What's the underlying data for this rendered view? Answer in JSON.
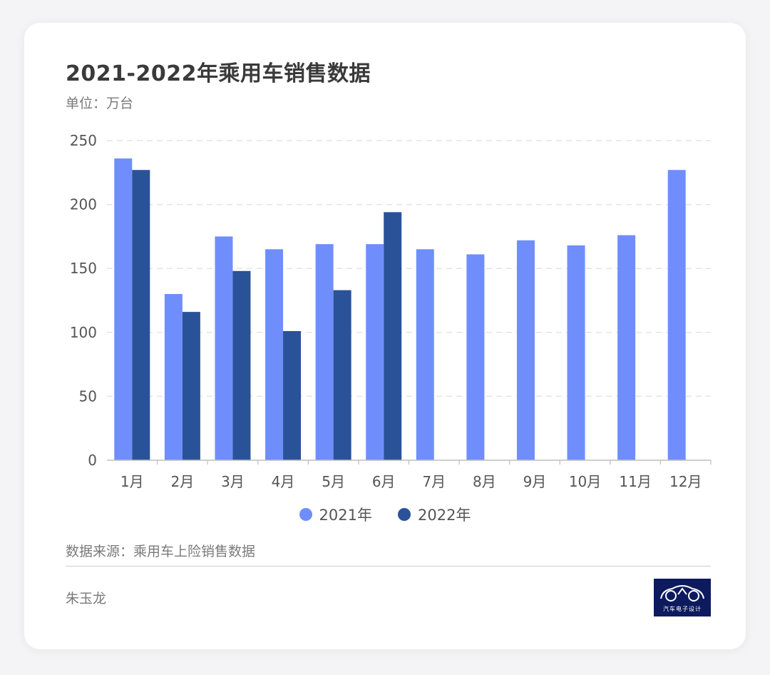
{
  "header": {
    "title": "2021-2022年乘用车销售数据",
    "unit": "单位：万台"
  },
  "colors": {
    "series_2021": "#6f8efc",
    "series_2022": "#2a5298",
    "grid": "#e4e4e4",
    "axis": "#bdbdbd",
    "text": "#555555"
  },
  "chart_data": {
    "type": "bar",
    "categories": [
      "1月",
      "2月",
      "3月",
      "4月",
      "5月",
      "6月",
      "7月",
      "8月",
      "9月",
      "10月",
      "11月",
      "12月"
    ],
    "series": [
      {
        "name": "2021年",
        "values": [
          236,
          130,
          175,
          165,
          169,
          169,
          165,
          161,
          172,
          168,
          176,
          227
        ]
      },
      {
        "name": "2022年",
        "values": [
          227,
          116,
          148,
          101,
          133,
          194,
          null,
          null,
          null,
          null,
          null,
          null
        ]
      }
    ],
    "ylim": [
      0,
      250
    ],
    "yticks": [
      0,
      50,
      100,
      150,
      200,
      250
    ],
    "grid": true,
    "legend_position": "bottom"
  },
  "footer": {
    "source": "数据来源：乘用车上险销售数据",
    "author": "朱玉龙",
    "logo_text": "汽车电子设计",
    "logo_icon": "car-outline-icon"
  }
}
